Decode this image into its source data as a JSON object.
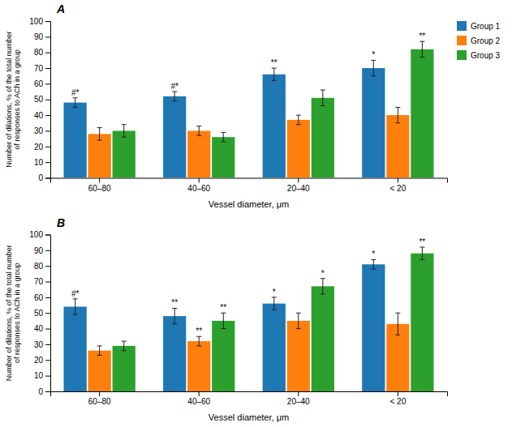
{
  "chart_data": [
    {
      "type": "bar",
      "title": "A",
      "xlabel": "Vessel diameter, μm",
      "ylabel": "Number of dilations, % of the total number\nof responses to ACh in a group",
      "categories": [
        "60–80",
        "40–60",
        "20–40",
        "< 20"
      ],
      "series": [
        {
          "name": "Group 1",
          "values": [
            48,
            52,
            66,
            70
          ],
          "errors": [
            3,
            3,
            4,
            5
          ],
          "annotations": [
            "#*",
            "#*",
            "**",
            "*"
          ]
        },
        {
          "name": "Group 2",
          "values": [
            28,
            30,
            37,
            40
          ],
          "errors": [
            4,
            3,
            3,
            5
          ]
        },
        {
          "name": "Group 3",
          "values": [
            30,
            26,
            51,
            82
          ],
          "errors": [
            4,
            3,
            5,
            5
          ],
          "annotations": [
            null,
            null,
            null,
            "**"
          ]
        }
      ],
      "ylim": [
        0,
        100
      ],
      "yticks": [
        0,
        10,
        20,
        30,
        40,
        50,
        60,
        70,
        80,
        90,
        100
      ],
      "legend": "upper right"
    },
    {
      "type": "bar",
      "title": "B",
      "xlabel": "Vessel diameter, μm",
      "ylabel": "Number of dilations, % of the total number\nof responses to ACh in a group",
      "categories": [
        "60–80",
        "40–60",
        "20–40",
        "< 20"
      ],
      "series": [
        {
          "values": [
            54,
            48,
            56,
            81
          ],
          "errors": [
            5,
            5,
            4,
            3
          ],
          "annotations": [
            "#*",
            "**",
            "*",
            "*"
          ]
        },
        {
          "values": [
            26,
            32,
            45,
            43
          ],
          "errors": [
            3,
            3,
            5,
            7
          ],
          "annotations": [
            null,
            "**",
            null,
            null
          ]
        },
        {
          "values": [
            29,
            45,
            67,
            88
          ],
          "errors": [
            3,
            5,
            5,
            4
          ],
          "annotations": [
            null,
            "**",
            "*",
            "**"
          ]
        }
      ],
      "ylim": [
        0,
        100
      ],
      "yticks": [
        0,
        10,
        20,
        30,
        40,
        50,
        60,
        70,
        80,
        90,
        100
      ]
    }
  ]
}
